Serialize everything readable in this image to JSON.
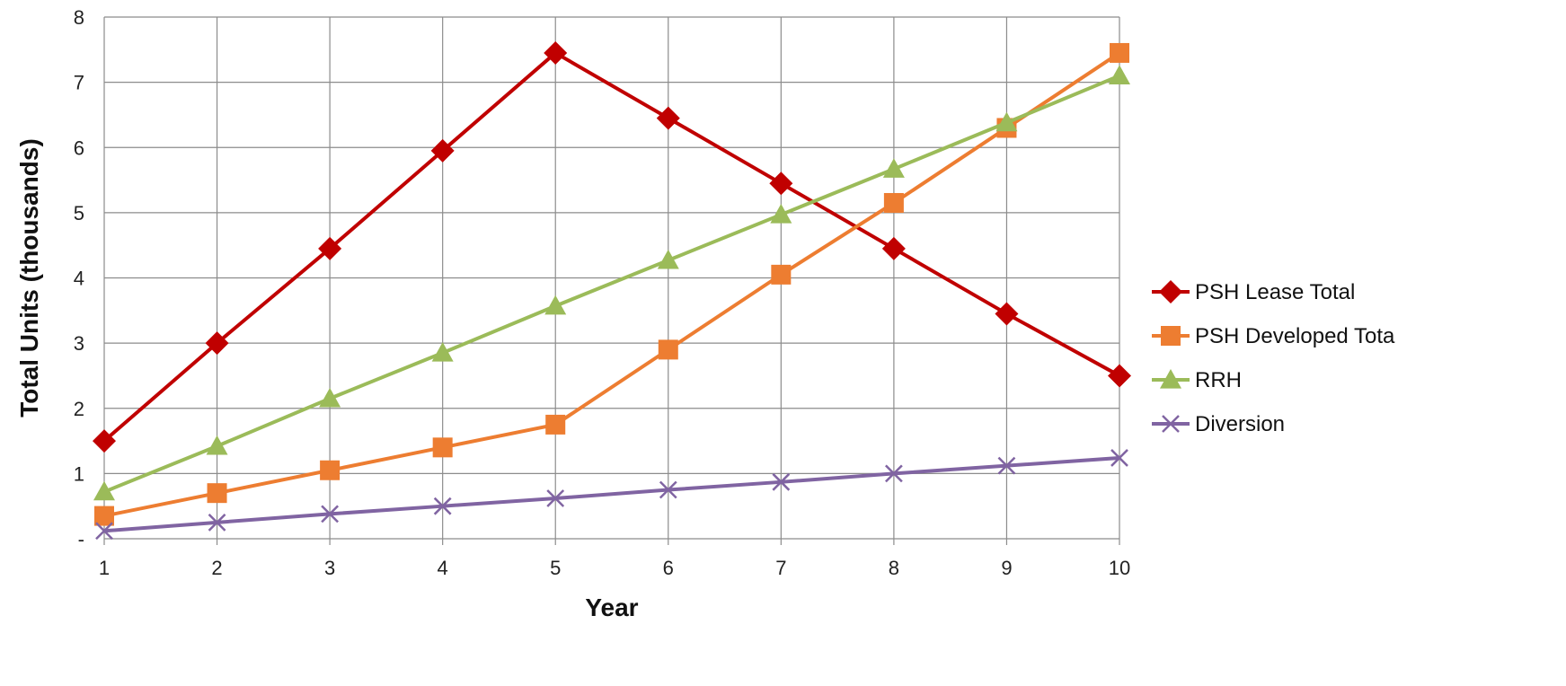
{
  "chart_data": {
    "type": "line",
    "xlabel": "Year",
    "ylabel": "Total Units (thousands)",
    "x": [
      1,
      2,
      3,
      4,
      5,
      6,
      7,
      8,
      9,
      10
    ],
    "x_tick_labels": [
      "1",
      "2",
      "3",
      "4",
      "5",
      "6",
      "7",
      "8",
      "9",
      "10"
    ],
    "y_ticks": [
      0,
      1,
      2,
      3,
      4,
      5,
      6,
      7,
      8
    ],
    "y_tick_labels": [
      "-",
      "1",
      "2",
      "3",
      "4",
      "5",
      "6",
      "7",
      "8"
    ],
    "ylim": [
      0,
      8
    ],
    "grid": true,
    "legend_position": "right",
    "series": [
      {
        "name": "PSH Lease Total",
        "color": "#c00000",
        "marker": "diamond",
        "values": [
          1.5,
          3.0,
          4.45,
          5.95,
          7.45,
          6.45,
          5.45,
          4.45,
          3.45,
          2.5
        ]
      },
      {
        "name": "PSH Developed Tota",
        "color": "#ed7d31",
        "marker": "square",
        "values": [
          0.35,
          0.7,
          1.05,
          1.4,
          1.75,
          2.9,
          4.05,
          5.15,
          6.3,
          7.45
        ]
      },
      {
        "name": "RRH",
        "color": "#9bbb59",
        "marker": "triangle",
        "values": [
          0.72,
          1.42,
          2.15,
          2.85,
          3.57,
          4.27,
          4.97,
          5.67,
          6.38,
          7.1
        ]
      },
      {
        "name": "Diversion",
        "color": "#8064a2",
        "marker": "x",
        "values": [
          0.12,
          0.25,
          0.38,
          0.5,
          0.62,
          0.75,
          0.87,
          1.0,
          1.12,
          1.24
        ]
      }
    ]
  }
}
